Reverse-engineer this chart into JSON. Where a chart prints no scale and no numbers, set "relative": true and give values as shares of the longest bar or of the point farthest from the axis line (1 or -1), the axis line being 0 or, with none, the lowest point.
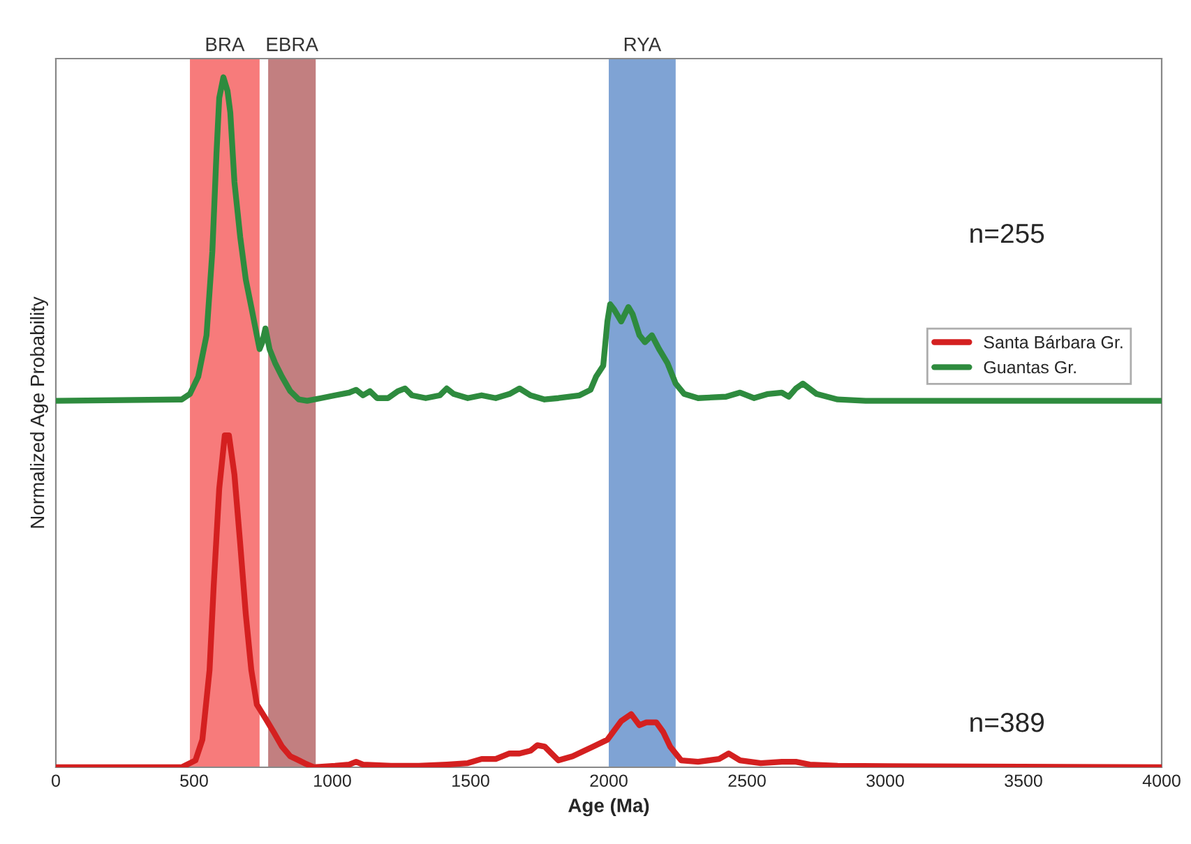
{
  "chart_data": {
    "type": "line",
    "relative": true,
    "xlabel": "Age (Ma)",
    "ylabel": "Normalized Age Probability",
    "xlim": [
      0,
      4000
    ],
    "xticks": [
      0,
      500,
      1000,
      1500,
      2000,
      2500,
      3000,
      3500,
      4000
    ],
    "grid": false,
    "legend": "right",
    "line_style": "solid",
    "marker": "none",
    "bands": [
      {
        "axis": "x",
        "from": 485,
        "to": 737,
        "label": "BRA",
        "color": "#f77b7b"
      },
      {
        "axis": "x",
        "from": 768,
        "to": 940,
        "label": "EBRA",
        "color": "#c27f80"
      },
      {
        "axis": "x",
        "from": 2000,
        "to": 2242,
        "label": "RYA",
        "color": "#7fa3d4"
      }
    ],
    "annotations": [
      "n=255",
      "n=389"
    ],
    "series": [
      {
        "name": "Santa Bárbara Gr.",
        "color": "#d42020",
        "x": [
          0,
          455,
          505,
          530,
          556,
          571,
          591,
          611,
          626,
          646,
          667,
          687,
          707,
          727,
          758,
          788,
          818,
          848,
          869,
          899,
          934,
          1010,
          1061,
          1086,
          1111,
          1212,
          1313,
          1414,
          1490,
          1540,
          1591,
          1641,
          1677,
          1717,
          1742,
          1768,
          1793,
          1818,
          1869,
          1944,
          1995,
          2045,
          2081,
          2111,
          2136,
          2172,
          2197,
          2222,
          2262,
          2323,
          2399,
          2434,
          2475,
          2550,
          2626,
          2677,
          2727,
          2828,
          4000
        ],
        "values": [
          0,
          0,
          0.01,
          0.04,
          0.141,
          0.263,
          0.404,
          0.481,
          0.481,
          0.424,
          0.323,
          0.222,
          0.141,
          0.091,
          0.071,
          0.051,
          0.03,
          0.016,
          0.012,
          0.006,
          0,
          0.002,
          0.004,
          0.008,
          0.004,
          0.002,
          0.002,
          0.004,
          0.006,
          0.012,
          0.012,
          0.02,
          0.02,
          0.024,
          0.032,
          0.03,
          0.02,
          0.01,
          0.016,
          0.03,
          0.04,
          0.067,
          0.077,
          0.061,
          0.065,
          0.065,
          0.051,
          0.03,
          0.01,
          0.008,
          0.012,
          0.02,
          0.01,
          0.006,
          0.008,
          0.008,
          0.004,
          0.002,
          0
        ]
      },
      {
        "name": "Guantas Gr.",
        "color": "#2e8b3e",
        "x": [
          0,
          455,
          485,
          515,
          545,
          566,
          581,
          591,
          606,
          621,
          631,
          646,
          667,
          687,
          707,
          727,
          737,
          747,
          758,
          773,
          793,
          818,
          848,
          879,
          909,
          960,
          1010,
          1061,
          1086,
          1111,
          1136,
          1162,
          1202,
          1237,
          1263,
          1288,
          1338,
          1389,
          1414,
          1439,
          1490,
          1540,
          1591,
          1641,
          1677,
          1717,
          1768,
          1818,
          1894,
          1934,
          1954,
          1980,
          1995,
          2005,
          2020,
          2045,
          2071,
          2086,
          2111,
          2131,
          2156,
          2182,
          2212,
          2242,
          2273,
          2323,
          2424,
          2475,
          2525,
          2576,
          2626,
          2651,
          2677,
          2702,
          2752,
          2828,
          2929,
          4000
        ],
        "values": [
          0.531,
          0.533,
          0.541,
          0.566,
          0.626,
          0.747,
          0.889,
          0.97,
          1.0,
          0.98,
          0.949,
          0.848,
          0.768,
          0.707,
          0.667,
          0.626,
          0.606,
          0.616,
          0.636,
          0.606,
          0.586,
          0.566,
          0.545,
          0.533,
          0.531,
          0.535,
          0.539,
          0.543,
          0.547,
          0.539,
          0.545,
          0.535,
          0.535,
          0.545,
          0.549,
          0.539,
          0.535,
          0.539,
          0.549,
          0.541,
          0.535,
          0.539,
          0.535,
          0.541,
          0.549,
          0.539,
          0.533,
          0.535,
          0.539,
          0.547,
          0.566,
          0.582,
          0.646,
          0.671,
          0.663,
          0.646,
          0.667,
          0.657,
          0.626,
          0.616,
          0.626,
          0.606,
          0.586,
          0.556,
          0.541,
          0.535,
          0.537,
          0.543,
          0.535,
          0.541,
          0.543,
          0.537,
          0.549,
          0.556,
          0.541,
          0.533,
          0.531,
          0.531
        ]
      }
    ]
  }
}
